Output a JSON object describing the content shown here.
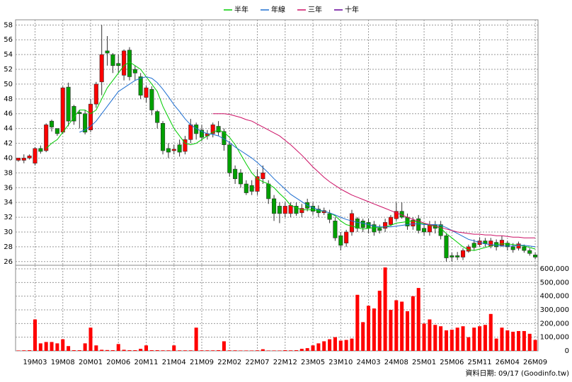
{
  "chart_data": [
    {
      "type": "candlestick",
      "up_color": "#ff0000",
      "down_color": "#00a000",
      "open": [
        39.7,
        39.7,
        40,
        39.3,
        41.3,
        41,
        45,
        44,
        43.5,
        49.6,
        47,
        46.2,
        46,
        43.8,
        47.3,
        50.3,
        54.5,
        54,
        52.8,
        51.2,
        54.6,
        52,
        51,
        48.2,
        49.3,
        46.3,
        44.7,
        41.3,
        41,
        41.8,
        40.9,
        42.5,
        44.5,
        43.8,
        43,
        43.3,
        44.3,
        43.6,
        41.8,
        38.5,
        38,
        36.5,
        36.3,
        35.5,
        37.2,
        36.5,
        34.5,
        33.5,
        32.5,
        32.5,
        33.5,
        32.6,
        34,
        33.5,
        33.1,
        32.6,
        32.5,
        31.5,
        29.5,
        28.5,
        30,
        31.8,
        31.5,
        31.3,
        31,
        30.5,
        30.5,
        31,
        31.8,
        32.8,
        32,
        30.8,
        31.8,
        30.5,
        30,
        31,
        31,
        29.5,
        26.8,
        26.8,
        26.6,
        27.4,
        28.5,
        28.3,
        28.8,
        28.1,
        28.6,
        28.2,
        28.5,
        28,
        27.8,
        28,
        27.5,
        26.9
      ],
      "high": [
        40,
        40.5,
        40.5,
        41.5,
        41.7,
        44.7,
        45.2,
        44,
        49.7,
        50.2,
        47.2,
        46.5,
        46.5,
        48,
        50.3,
        58,
        56.5,
        54.2,
        54,
        54.7,
        55,
        52.5,
        51.5,
        49.8,
        49.7,
        46.5,
        45,
        42,
        41.8,
        42.5,
        43,
        45.3,
        44.8,
        44.5,
        43.8,
        44.8,
        45,
        44,
        42.3,
        39,
        38.5,
        37,
        37,
        38.5,
        39,
        37,
        35,
        34,
        34,
        34,
        34,
        33.8,
        34.5,
        34,
        33.6,
        33.3,
        33,
        32,
        30,
        30.3,
        33,
        32,
        31.8,
        31.8,
        31.5,
        31,
        31.8,
        32.3,
        34,
        34,
        32.5,
        32,
        32.3,
        31,
        31.5,
        31.5,
        31.5,
        29.8,
        27.2,
        27.3,
        27.8,
        28.3,
        29,
        29.3,
        29.2,
        29.2,
        29,
        29.5,
        28.8,
        28.5,
        28.7,
        28.3,
        27.8,
        27.2
      ],
      "low": [
        39.5,
        39.3,
        39.8,
        39,
        40.6,
        40.8,
        43.6,
        43,
        43.3,
        44.3,
        44.5,
        44,
        43.2,
        43.5,
        46.8,
        48.5,
        52.5,
        51.5,
        51.5,
        50.5,
        50.5,
        50.5,
        48,
        47.5,
        45.8,
        44,
        40.5,
        40,
        40.5,
        40.2,
        40.5,
        42,
        42.5,
        42.3,
        42.5,
        42.8,
        43,
        41,
        37.5,
        36.5,
        36,
        35,
        35,
        35,
        36.5,
        33.8,
        31.5,
        31.2,
        32,
        32,
        32.2,
        32,
        32.8,
        32.3,
        32,
        32.3,
        31.2,
        28.8,
        27.5,
        28,
        29.5,
        30,
        30,
        29.8,
        29.5,
        29.8,
        30,
        30.8,
        31.5,
        31.8,
        30.3,
        30.3,
        29.8,
        29.5,
        29.5,
        29.8,
        29,
        26,
        26,
        26.2,
        26.2,
        27.2,
        27.5,
        28,
        28,
        27.8,
        27.5,
        28,
        27.5,
        27.2,
        27.5,
        27.2,
        26.8,
        26.3
      ],
      "close": [
        40,
        40,
        40.3,
        41.3,
        40.9,
        44.5,
        44.2,
        43.3,
        49.5,
        45,
        45,
        46,
        43.5,
        47.3,
        50,
        54,
        54.2,
        52.5,
        52.5,
        54.5,
        51,
        51.5,
        48.5,
        49.5,
        46.5,
        44.8,
        41,
        40.8,
        41.2,
        40.8,
        42.5,
        44.5,
        43.3,
        42.8,
        43.3,
        44.5,
        43.5,
        41.8,
        38,
        37.2,
        36.5,
        35.3,
        35.5,
        37.5,
        38,
        34.5,
        32.5,
        32.5,
        33.5,
        33.6,
        32.5,
        33.2,
        33.2,
        32.8,
        32.6,
        32.9,
        31.7,
        29.2,
        28.2,
        30,
        32.5,
        30.5,
        30.6,
        30.5,
        30,
        30.2,
        31.3,
        32,
        32.8,
        32,
        30.8,
        31.6,
        30.2,
        30,
        31,
        30.5,
        29.5,
        26.5,
        26.6,
        26.6,
        27.5,
        28,
        27.9,
        28.8,
        28.4,
        28.8,
        28,
        28.9,
        28,
        27.6,
        28.4,
        27.5,
        27.1,
        26.6
      ],
      "series": [
        {
          "name": "半年",
          "color": "#00cc00",
          "values": [
            null,
            null,
            null,
            null,
            null,
            41.3,
            42,
            42.5,
            43.5,
            44.5,
            45.5,
            46.5,
            46.5,
            46,
            46.5,
            48,
            49.5,
            50.5,
            51.5,
            52.5,
            53,
            52.5,
            52,
            51,
            50,
            49,
            47,
            45.5,
            44,
            43,
            42,
            41.8,
            42,
            42.5,
            43,
            43.5,
            43.8,
            43.5,
            42.8,
            41.8,
            40.5,
            39.2,
            38,
            37.2,
            36.8,
            36.5,
            36,
            35.2,
            34.5,
            33.6,
            33.3,
            33,
            33,
            33,
            32.9,
            32.8,
            32.6,
            32.2,
            31.5,
            31,
            30.8,
            30.6,
            30.4,
            30.5,
            30.6,
            30.6,
            30.7,
            30.9,
            31.2,
            31.3,
            31.4,
            31.5,
            31.3,
            31.1,
            30.9,
            30.8,
            30.5,
            29.8,
            29.2,
            28.6,
            28,
            27.6,
            27.5,
            27.7,
            27.9,
            28.1,
            28.3,
            28.4,
            28.4,
            28.3,
            28.2,
            28.1,
            27.9,
            27.7
          ]
        },
        {
          "name": "年線",
          "color": "#1f6fd1",
          "values": [
            null,
            null,
            null,
            null,
            null,
            null,
            null,
            null,
            null,
            null,
            null,
            43.5,
            43.8,
            44.3,
            45,
            46,
            47,
            48,
            49,
            49.5,
            50,
            50.5,
            50.8,
            51,
            50.8,
            50.2,
            49.3,
            48.3,
            47.2,
            46.3,
            45.3,
            44.5,
            44,
            43.6,
            43.3,
            43.2,
            43,
            42.6,
            42.1,
            41.5,
            41,
            40.5,
            40,
            39.4,
            38.7,
            38,
            37.2,
            36.5,
            35.8,
            35.1,
            34.6,
            34.1,
            33.6,
            33.3,
            33,
            32.8,
            32.6,
            32.3,
            32,
            31.7,
            31.5,
            31.3,
            31.2,
            31,
            30.8,
            30.7,
            30.7,
            30.7,
            30.8,
            30.9,
            31,
            31.1,
            31.1,
            31,
            31,
            31,
            30.9,
            30.6,
            30.2,
            29.8,
            29.4,
            29,
            28.8,
            28.6,
            28.4,
            28.3,
            28.2,
            28.1,
            28.1,
            28.1,
            28.2,
            28.2,
            28.1,
            28
          ]
        },
        {
          "name": "三年",
          "color": "#cc1166",
          "values": [
            null,
            null,
            null,
            null,
            null,
            null,
            null,
            null,
            null,
            null,
            null,
            null,
            null,
            null,
            null,
            null,
            null,
            null,
            null,
            null,
            null,
            null,
            null,
            null,
            null,
            null,
            null,
            null,
            null,
            null,
            null,
            null,
            null,
            null,
            null,
            46,
            46,
            46,
            45.9,
            45.7,
            45.5,
            45.2,
            45,
            44.6,
            44.2,
            43.8,
            43.4,
            43,
            42.4,
            41.8,
            41.1,
            40.4,
            39.6,
            38.8,
            38.1,
            37.4,
            36.8,
            36.3,
            35.8,
            35.4,
            35,
            34.7,
            34.4,
            34.1,
            33.8,
            33.5,
            33.2,
            32.9,
            32.6,
            32.3,
            32,
            31.7,
            31.5,
            31.2,
            31,
            30.8,
            30.6,
            30.4,
            30.2,
            30,
            29.9,
            29.8,
            29.7,
            29.7,
            29.6,
            29.6,
            29.5,
            29.5,
            29.4,
            29.3,
            29.3,
            29.2,
            29.2,
            29.2
          ]
        },
        {
          "name": "十年",
          "color": "#660099",
          "values": [
            null,
            null,
            null,
            null,
            null,
            null,
            null,
            null,
            null,
            null,
            null,
            null,
            null,
            null,
            null,
            null,
            null,
            null,
            null,
            null,
            null,
            null,
            null,
            null,
            null,
            null,
            null,
            null,
            null,
            null,
            null,
            null,
            null,
            null,
            null,
            null,
            null,
            null,
            null,
            null,
            null,
            null,
            null,
            null,
            null,
            null,
            null,
            null,
            null,
            null,
            null,
            null,
            null,
            null,
            null,
            null,
            null,
            null,
            null,
            null,
            null,
            null,
            null,
            null,
            null,
            null,
            null,
            null,
            null,
            null,
            null,
            null,
            null,
            null,
            null,
            null,
            null,
            null,
            null,
            null,
            null,
            null,
            null,
            null,
            null,
            null,
            null,
            null,
            null,
            null,
            null,
            null,
            null,
            null
          ]
        }
      ],
      "ylim": [
        25.5,
        58.7
      ],
      "yticks": [
        26,
        28,
        30,
        32,
        34,
        36,
        38,
        40,
        42,
        44,
        46,
        48,
        50,
        52,
        54,
        56,
        58
      ],
      "grid": true,
      "legend": "top"
    },
    {
      "type": "bar",
      "categories": [
        null,
        null,
        null,
        "19M03",
        null,
        null,
        null,
        null,
        "19M08",
        null,
        null,
        null,
        null,
        "20M01",
        null,
        null,
        null,
        null,
        "20M06",
        null,
        null,
        null,
        null,
        "20M11",
        null,
        null,
        null,
        null,
        "21M04",
        null,
        null,
        null,
        null,
        "21M09",
        null,
        null,
        null,
        null,
        "22M02",
        null,
        null,
        null,
        null,
        "22M07",
        null,
        null,
        null,
        null,
        "22M12",
        null,
        null,
        null,
        null,
        "23M05",
        null,
        null,
        null,
        null,
        "23M10",
        null,
        null,
        null,
        null,
        "24M03",
        null,
        null,
        null,
        null,
        "24M08",
        null,
        null,
        null,
        null,
        "25M01",
        null,
        null,
        null,
        null,
        "25M06",
        null,
        null,
        null,
        null,
        "25M11",
        null,
        null,
        null,
        null,
        "26M04",
        null,
        null,
        null,
        null,
        "26M09"
      ],
      "values": [
        3000,
        4000,
        5000,
        230000,
        55000,
        65000,
        65000,
        55000,
        85000,
        35000,
        5000,
        5000,
        55000,
        170000,
        40000,
        8000,
        6000,
        5000,
        50000,
        8000,
        5000,
        5000,
        15000,
        40000,
        5000,
        5000,
        4000,
        4000,
        40000,
        4000,
        4000,
        4000,
        170000,
        4000,
        4000,
        4000,
        5000,
        70000,
        4000,
        4000,
        3000,
        3000,
        3000,
        4000,
        12000,
        3000,
        3000,
        3000,
        5000,
        4000,
        5000,
        15000,
        20000,
        40000,
        55000,
        70000,
        85000,
        100000,
        75000,
        80000,
        90000,
        410000,
        210000,
        330000,
        310000,
        440000,
        610000,
        300000,
        370000,
        360000,
        290000,
        400000,
        460000,
        200000,
        230000,
        190000,
        180000,
        150000,
        155000,
        170000,
        180000,
        100000,
        170000,
        180000,
        190000,
        270000,
        90000,
        170000,
        150000,
        140000,
        145000,
        145000,
        125000,
        80000
      ],
      "color": "#ff0000",
      "ylim": [
        0,
        626000
      ],
      "yticks": [
        0,
        {
          "value": 100000,
          "label": "100,000"
        },
        {
          "value": 200000,
          "label": "200,000"
        },
        {
          "value": 300000,
          "label": "300,000"
        },
        {
          "value": 400000,
          "label": "400,000"
        },
        {
          "value": 500000,
          "label": "500,000"
        },
        {
          "value": 600000,
          "label": "600,000"
        }
      ],
      "grid": true
    }
  ],
  "footer": "資料日期: 09/17 (Goodinfo.tw)"
}
